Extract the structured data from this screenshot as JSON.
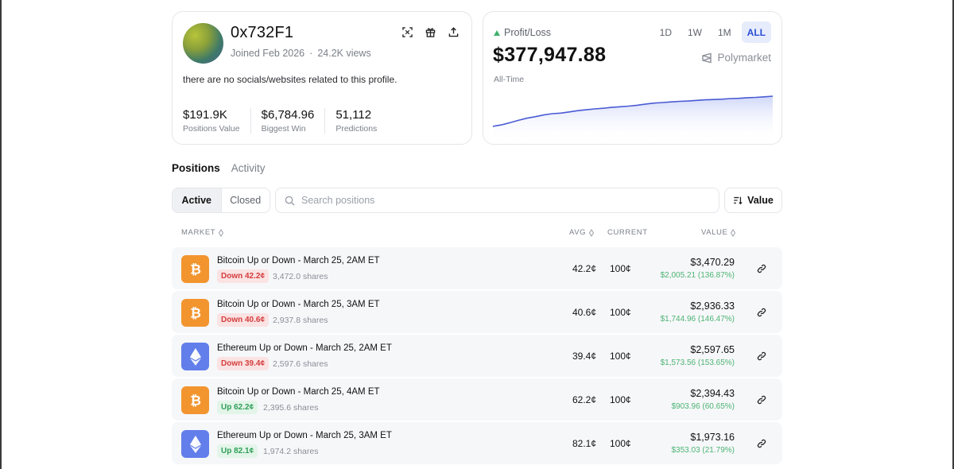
{
  "profile": {
    "name": "0x732F1",
    "joined": "Joined Feb 2026",
    "views": "24.2K views",
    "bio": "there are no socials/websites related to this profile.",
    "stats": [
      {
        "value": "$191.9K",
        "label": "Positions Value"
      },
      {
        "value": "$6,784.96",
        "label": "Biggest Win"
      },
      {
        "value": "51,112",
        "label": "Predictions"
      }
    ],
    "icons": [
      "scan-icon",
      "gift-icon",
      "share-icon"
    ]
  },
  "pnl": {
    "label": "Profit/Loss",
    "value": "$377,947.88",
    "sub": "All-Time",
    "brand": "Polymarket",
    "ranges": [
      "1D",
      "1W",
      "1M",
      "ALL"
    ],
    "active_range": "ALL",
    "trend": [
      0.0,
      0.05,
      0.12,
      0.2,
      0.27,
      0.32,
      0.38,
      0.42,
      0.44,
      0.48,
      0.52,
      0.55,
      0.58,
      0.6,
      0.63,
      0.65,
      0.67,
      0.7,
      0.74,
      0.77,
      0.79,
      0.81,
      0.83,
      0.84,
      0.86,
      0.88,
      0.89,
      0.9,
      0.92,
      0.93,
      0.95,
      0.96,
      0.98,
      1.0
    ],
    "colors": {
      "line": "#4a5bd4",
      "fill": "#dfe4fb",
      "up": "#3fb26b"
    }
  },
  "tabs": {
    "positions": "Positions",
    "activity": "Activity"
  },
  "toolbar": {
    "active": "Active",
    "closed": "Closed",
    "search_placeholder": "Search positions",
    "sort": "Value"
  },
  "table": {
    "headers": {
      "market": "MARKET",
      "avg": "AVG",
      "current": "CURRENT",
      "value": "VALUE"
    },
    "rows": [
      {
        "coin": "btc",
        "title": "Bitcoin Up or Down - March 25, 2AM ET",
        "side": "down",
        "pill": "Down 42.2¢",
        "shares": "3,472.0 shares",
        "avg": "42.2¢",
        "current": "100¢",
        "value": "$3,470.29",
        "gain": "$2,005.21 (136.87%)"
      },
      {
        "coin": "btc",
        "title": "Bitcoin Up or Down - March 25, 3AM ET",
        "side": "down",
        "pill": "Down 40.6¢",
        "shares": "2,937.8 shares",
        "avg": "40.6¢",
        "current": "100¢",
        "value": "$2,936.33",
        "gain": "$1,744.96 (146.47%)"
      },
      {
        "coin": "eth",
        "title": "Ethereum Up or Down - March 25, 2AM ET",
        "side": "down",
        "pill": "Down 39.4¢",
        "shares": "2,597.6 shares",
        "avg": "39.4¢",
        "current": "100¢",
        "value": "$2,597.65",
        "gain": "$1,573.56 (153.65%)"
      },
      {
        "coin": "btc",
        "title": "Bitcoin Up or Down - March 25, 4AM ET",
        "side": "up",
        "pill": "Up 62.2¢",
        "shares": "2,395.6 shares",
        "avg": "62.2¢",
        "current": "100¢",
        "value": "$2,394.43",
        "gain": "$903.96 (60.65%)"
      },
      {
        "coin": "eth",
        "title": "Ethereum Up or Down - March 25, 3AM ET",
        "side": "up",
        "pill": "Up 82.1¢",
        "shares": "1,974.2 shares",
        "avg": "82.1¢",
        "current": "100¢",
        "value": "$1,973.16",
        "gain": "$353.03 (21.79%)"
      }
    ]
  }
}
